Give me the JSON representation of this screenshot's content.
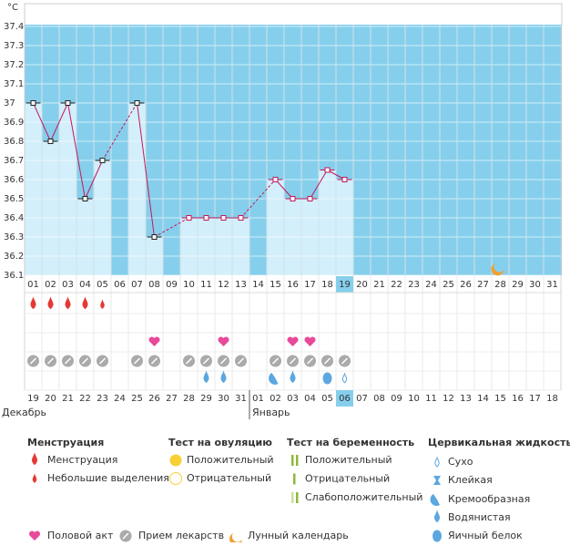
{
  "chart_data": {
    "type": "bar",
    "unit": "°C",
    "categories": [
      "01",
      "02",
      "03",
      "04",
      "05",
      "06",
      "07",
      "08",
      "09",
      "10",
      "11",
      "12",
      "13",
      "14",
      "15",
      "16",
      "17",
      "18",
      "19",
      "20",
      "21",
      "22",
      "23",
      "24",
      "25",
      "26",
      "27",
      "28",
      "29",
      "30",
      "31"
    ],
    "values": [
      37.0,
      36.8,
      37.0,
      36.5,
      36.7,
      null,
      37.0,
      36.3,
      null,
      36.4,
      36.4,
      36.4,
      36.4,
      null,
      36.6,
      36.5,
      36.5,
      36.65,
      36.6,
      null,
      null,
      null,
      null,
      null,
      null,
      null,
      null,
      null,
      null,
      null,
      null
    ],
    "ylim": [
      36.1,
      37.4
    ],
    "yticks": [
      37.4,
      37.3,
      37.2,
      37.1,
      37,
      36.9,
      36.8,
      36.7,
      36.6,
      36.5,
      36.4,
      36.3,
      36.2,
      36.1
    ],
    "color": "#d3effb",
    "background": "#86cfec",
    "line_color": "#c2185b",
    "grid": true,
    "highlight": 18,
    "moon": 27
  },
  "calendar": {
    "dates": [
      "19",
      "20",
      "21",
      "22",
      "23",
      "24",
      "25",
      "26",
      "27",
      "28",
      "29",
      "30",
      "31",
      "01",
      "02",
      "03",
      "04",
      "05",
      "06",
      "07",
      "08",
      "09",
      "10",
      "11",
      "12",
      "13",
      "14",
      "15",
      "16",
      "17",
      "18"
    ],
    "red": [
      1,
      2,
      8,
      9,
      15,
      16,
      22,
      23,
      29,
      30
    ],
    "highlight": 18,
    "months": [
      {
        "label": "Декабрь",
        "start": 0
      },
      {
        "label": "Январь",
        "start": 13
      }
    ]
  },
  "symbols": {
    "heavy": [
      0,
      1,
      2,
      3
    ],
    "light": [
      4
    ],
    "intercourse": [
      7,
      11,
      15,
      16
    ],
    "pills": [
      0,
      1,
      2,
      3,
      4,
      6,
      7,
      9,
      10,
      11,
      12,
      14,
      15,
      16,
      17,
      18
    ],
    "watery": [
      10,
      11,
      15
    ],
    "creamy": [
      14
    ],
    "eggwhite": [
      17
    ],
    "dry": [
      18
    ]
  },
  "legend": {
    "menstruation": {
      "title": "Менструация",
      "items": [
        "Менструация",
        "Небольшие выделения"
      ]
    },
    "ovulation": {
      "title": "Тест на овуляцию",
      "items": [
        "Положительный",
        "Отрицательный"
      ]
    },
    "pregnancy": {
      "title": "Тест на беременность",
      "items": [
        "Положительный",
        "Отрицательный",
        "Слабоположительный"
      ]
    },
    "cervical": {
      "title": "Цервикальная жидкость",
      "items": [
        "Сухо",
        "Клейкая",
        "Кремообразная",
        "Водянистая",
        "Яичный белок"
      ]
    },
    "other": [
      "Половой акт",
      "Прием лекарств",
      "Лунный календарь"
    ]
  }
}
